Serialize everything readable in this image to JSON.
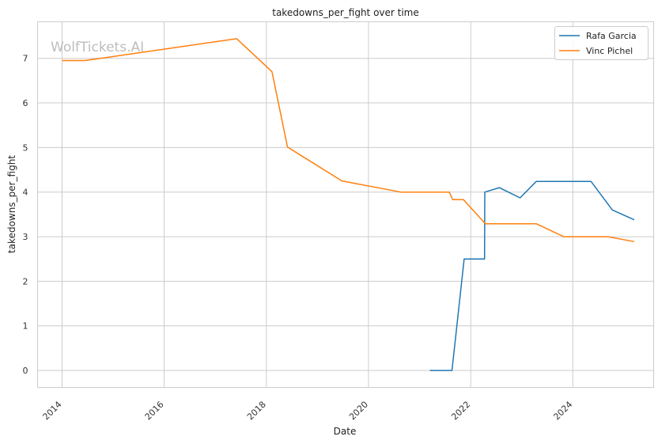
{
  "watermark": "WolfTickets.AI",
  "chart_data": {
    "type": "line",
    "title": "takedowns_per_fight over time",
    "xlabel": "Date",
    "ylabel": "takedowns_per_fight",
    "xlim": [
      "2013-07-10",
      "2025-08-01"
    ],
    "ylim": [
      -0.38,
      7.82
    ],
    "x_ticks": [
      "2014",
      "2016",
      "2018",
      "2020",
      "2022",
      "2024"
    ],
    "y_ticks": [
      0,
      1,
      2,
      3,
      4,
      5,
      6,
      7
    ],
    "grid": true,
    "legend_position": "top-right",
    "series": [
      {
        "name": "Rafa Garcia",
        "color": "#1f77b4",
        "points": [
          [
            "2021-03-15",
            0.0
          ],
          [
            "2021-08-20",
            0.0
          ],
          [
            "2021-11-15",
            2.5
          ],
          [
            "2022-04-10",
            2.5
          ],
          [
            "2022-04-12",
            4.0
          ],
          [
            "2022-07-25",
            4.1
          ],
          [
            "2022-12-20",
            3.87
          ],
          [
            "2023-04-15",
            4.24
          ],
          [
            "2024-05-10",
            4.24
          ],
          [
            "2024-10-10",
            3.6
          ],
          [
            "2025-03-15",
            3.38
          ]
        ]
      },
      {
        "name": "Vinc Pichel",
        "color": "#ff7f0e",
        "points": [
          [
            "2014-01-01",
            6.95
          ],
          [
            "2014-06-15",
            6.95
          ],
          [
            "2017-06-03",
            7.44
          ],
          [
            "2018-02-10",
            6.7
          ],
          [
            "2018-06-01",
            5.01
          ],
          [
            "2019-06-25",
            4.25
          ],
          [
            "2020-08-20",
            4.0
          ],
          [
            "2021-08-01",
            4.0
          ],
          [
            "2021-08-25",
            3.83
          ],
          [
            "2021-11-10",
            3.83
          ],
          [
            "2022-04-16",
            3.29
          ],
          [
            "2023-04-15",
            3.29
          ],
          [
            "2023-10-28",
            3.0
          ],
          [
            "2024-09-10",
            3.0
          ],
          [
            "2025-03-15",
            2.89
          ]
        ]
      }
    ]
  }
}
